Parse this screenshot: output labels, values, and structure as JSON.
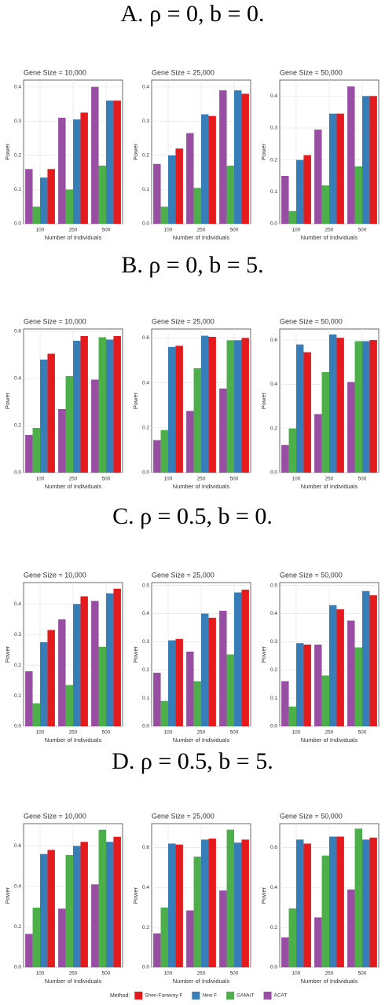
{
  "headings": [
    "A. ρ = 0, b = 0.",
    "B. ρ = 0, b = 5.",
    "C. ρ = 0.5, b = 0.",
    "D. ρ = 0.5, b = 5."
  ],
  "legend": {
    "title": "Method:",
    "entries": [
      {
        "name": "Shen-Faraway F",
        "color": "#e41a1c"
      },
      {
        "name": "New F",
        "color": "#377eb8"
      },
      {
        "name": "GAMuT",
        "color": "#4daf4a"
      },
      {
        "name": "ACAT",
        "color": "#984ea3"
      }
    ]
  },
  "chart_data": [
    {
      "type": "bar",
      "title": "Gene Size = 10,000",
      "xlabel": "Number of Individuals",
      "ylabel": "Power",
      "categories": [
        "100",
        "250",
        "500"
      ],
      "ylim": [
        0,
        0.42
      ],
      "yticks": [
        {
          "value": 0,
          "label": "0.0"
        },
        0.1,
        0.2,
        0.3,
        0.4
      ],
      "series": [
        {
          "values": [
            0.16,
            0.31,
            0.4
          ]
        },
        {
          "values": [
            0.05,
            0.1,
            0.17
          ]
        },
        {
          "values": [
            0.135,
            0.305,
            0.36
          ]
        },
        {
          "values": [
            0.16,
            0.325,
            0.36
          ]
        }
      ]
    },
    {
      "type": "bar",
      "title": "Gene Size = 25,000",
      "xlabel": "Number of Individuals",
      "ylabel": "Power",
      "categories": [
        "100",
        "250",
        "500"
      ],
      "ylim": [
        0,
        0.42
      ],
      "yticks": [
        {
          "value": 0,
          "label": "0.0"
        },
        0.1,
        0.2,
        0.3,
        0.4
      ],
      "series": [
        {
          "values": [
            0.175,
            0.265,
            0.39
          ]
        },
        {
          "values": [
            0.05,
            0.105,
            0.17
          ]
        },
        {
          "values": [
            0.2,
            0.32,
            0.39
          ]
        },
        {
          "values": [
            0.22,
            0.315,
            0.38
          ]
        }
      ]
    },
    {
      "type": "bar",
      "title": "Gene Size = 50,000",
      "xlabel": "Number of Individuals",
      "ylabel": "Power",
      "categories": [
        "100",
        "250",
        "500"
      ],
      "ylim": [
        0,
        0.45
      ],
      "yticks": [
        {
          "value": 0,
          "label": "0.0"
        },
        0.1,
        0.2,
        0.3,
        0.4
      ],
      "series": [
        {
          "values": [
            0.15,
            0.295,
            0.43
          ]
        },
        {
          "values": [
            0.04,
            0.12,
            0.18
          ]
        },
        {
          "values": [
            0.2,
            0.345,
            0.4
          ]
        },
        {
          "values": [
            0.215,
            0.345,
            0.4
          ]
        }
      ]
    },
    {
      "type": "bar",
      "title": "Gene Size = 10,000",
      "xlabel": "Number of Individuals",
      "ylabel": "Power",
      "categories": [
        "100",
        "250",
        "500"
      ],
      "ylim": [
        0,
        0.61
      ],
      "yticks": [
        {
          "value": 0,
          "label": "0.0"
        },
        0.2,
        0.4,
        0.6
      ],
      "series": [
        {
          "values": [
            0.16,
            0.27,
            0.395
          ]
        },
        {
          "values": [
            0.19,
            0.41,
            0.575
          ]
        },
        {
          "values": [
            0.48,
            0.56,
            0.565
          ]
        },
        {
          "values": [
            0.505,
            0.58,
            0.58
          ]
        }
      ]
    },
    {
      "type": "bar",
      "title": "Gene Size = 25,000",
      "xlabel": "Number of Individuals",
      "ylabel": "Power",
      "categories": [
        "100",
        "250",
        "500"
      ],
      "ylim": [
        0,
        0.64
      ],
      "yticks": [
        {
          "value": 0,
          "label": "0.0"
        },
        0.2,
        0.4,
        0.6
      ],
      "series": [
        {
          "values": [
            0.145,
            0.275,
            0.375
          ]
        },
        {
          "values": [
            0.19,
            0.465,
            0.59
          ]
        },
        {
          "values": [
            0.56,
            0.61,
            0.59
          ]
        },
        {
          "values": [
            0.565,
            0.605,
            0.6
          ]
        }
      ]
    },
    {
      "type": "bar",
      "title": "Gene Size = 50,000",
      "xlabel": "Number of Individuals",
      "ylabel": "Power",
      "categories": [
        "100",
        "250",
        "500"
      ],
      "ylim": [
        0,
        0.65
      ],
      "yticks": [
        {
          "value": 0,
          "label": "0.0"
        },
        0.2,
        0.4,
        0.6
      ],
      "series": [
        {
          "values": [
            0.125,
            0.265,
            0.41
          ]
        },
        {
          "values": [
            0.2,
            0.455,
            0.595
          ]
        },
        {
          "values": [
            0.58,
            0.625,
            0.595
          ]
        },
        {
          "values": [
            0.545,
            0.61,
            0.6
          ]
        }
      ]
    },
    {
      "type": "bar",
      "title": "Gene Size = 10,000",
      "xlabel": "Number of Individuals",
      "ylabel": "Power",
      "categories": [
        "100",
        "250",
        "500"
      ],
      "ylim": [
        0,
        0.47
      ],
      "yticks": [
        {
          "value": 0,
          "label": "0.0"
        },
        0.1,
        0.2,
        0.3,
        0.4
      ],
      "series": [
        {
          "values": [
            0.18,
            0.35,
            0.41
          ]
        },
        {
          "values": [
            0.075,
            0.135,
            0.26
          ]
        },
        {
          "values": [
            0.275,
            0.4,
            0.435
          ]
        },
        {
          "values": [
            0.315,
            0.425,
            0.45
          ]
        }
      ]
    },
    {
      "type": "bar",
      "title": "Gene Size = 25,000",
      "xlabel": "Number of Individuals",
      "ylabel": "Power",
      "categories": [
        "100",
        "250",
        "500"
      ],
      "ylim": [
        0,
        0.51
      ],
      "yticks": [
        {
          "value": 0,
          "label": "0.0"
        },
        0.1,
        0.2,
        0.3,
        0.4,
        0.5
      ],
      "series": [
        {
          "values": [
            0.19,
            0.265,
            0.41
          ]
        },
        {
          "values": [
            0.09,
            0.16,
            0.255
          ]
        },
        {
          "values": [
            0.305,
            0.4,
            0.475
          ]
        },
        {
          "values": [
            0.31,
            0.385,
            0.485
          ]
        }
      ]
    },
    {
      "type": "bar",
      "title": "Gene Size = 50,000",
      "xlabel": "Number of Individuals",
      "ylabel": "Power",
      "categories": [
        "100",
        "250",
        "500"
      ],
      "ylim": [
        0,
        0.51
      ],
      "yticks": [
        {
          "value": 0,
          "label": "0.0"
        },
        0.1,
        0.2,
        0.3,
        0.4,
        0.5
      ],
      "series": [
        {
          "values": [
            0.16,
            0.29,
            0.375
          ]
        },
        {
          "values": [
            0.07,
            0.18,
            0.28
          ]
        },
        {
          "values": [
            0.295,
            0.43,
            0.48
          ]
        },
        {
          "values": [
            0.29,
            0.415,
            0.465
          ]
        }
      ]
    },
    {
      "type": "bar",
      "title": "Gene Size = 10,000",
      "xlabel": "Number of Individuals",
      "ylabel": "Power",
      "categories": [
        "100",
        "250",
        "500"
      ],
      "ylim": [
        0,
        0.71
      ],
      "yticks": [
        {
          "value": 0,
          "label": "0.0"
        },
        0.2,
        0.4,
        0.6
      ],
      "series": [
        {
          "values": [
            0.165,
            0.29,
            0.41
          ]
        },
        {
          "values": [
            0.295,
            0.555,
            0.68
          ]
        },
        {
          "values": [
            0.56,
            0.6,
            0.62
          ]
        },
        {
          "values": [
            0.58,
            0.62,
            0.645
          ]
        }
      ]
    },
    {
      "type": "bar",
      "title": "Gene Size = 25,000",
      "xlabel": "Number of Individuals",
      "ylabel": "Power",
      "categories": [
        "100",
        "250",
        "500"
      ],
      "ylim": [
        0,
        0.72
      ],
      "yticks": [
        {
          "value": 0,
          "label": "0.0"
        },
        0.2,
        0.4,
        0.6
      ],
      "series": [
        {
          "values": [
            0.17,
            0.285,
            0.385
          ]
        },
        {
          "values": [
            0.3,
            0.555,
            0.69
          ]
        },
        {
          "values": [
            0.62,
            0.64,
            0.625
          ]
        },
        {
          "values": [
            0.615,
            0.645,
            0.64
          ]
        }
      ]
    },
    {
      "type": "bar",
      "title": "Gene Size = 50,000",
      "xlabel": "Number of Individuals",
      "ylabel": "Power",
      "categories": [
        "100",
        "250",
        "500"
      ],
      "ylim": [
        0,
        0.72
      ],
      "yticks": [
        {
          "value": 0,
          "label": "0.0"
        },
        0.2,
        0.4,
        0.6
      ],
      "series": [
        {
          "values": [
            0.15,
            0.25,
            0.39
          ]
        },
        {
          "values": [
            0.295,
            0.56,
            0.695
          ]
        },
        {
          "values": [
            0.64,
            0.655,
            0.64
          ]
        },
        {
          "values": [
            0.62,
            0.655,
            0.65
          ]
        }
      ]
    }
  ]
}
